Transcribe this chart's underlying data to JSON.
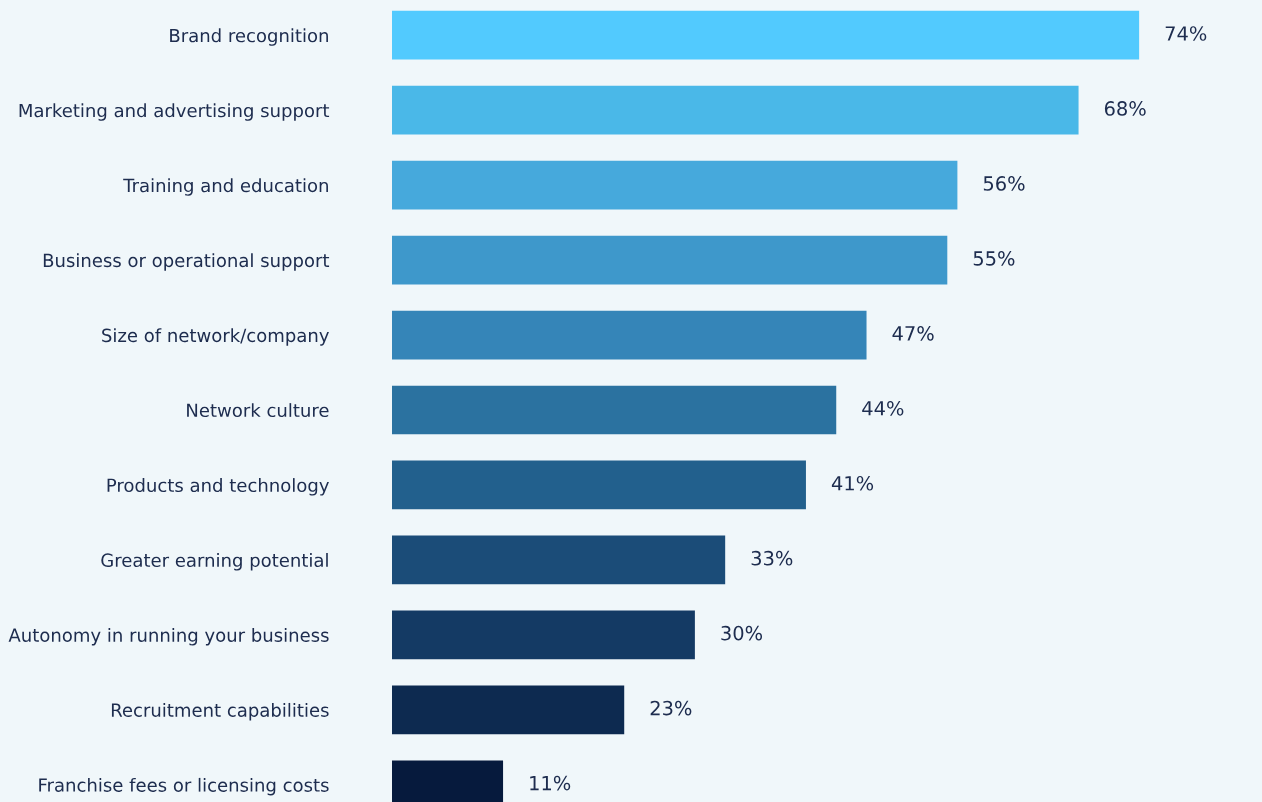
{
  "chart_data": {
    "type": "bar",
    "orientation": "horizontal",
    "data_labels": true,
    "categories": [
      "Brand recognition",
      "Marketing and advertising support",
      "Training and education",
      "Business or operational support",
      "Size of network/company",
      "Network culture",
      "Products and technology",
      "Greater earning potential",
      "Autonomy in running your business",
      "Recruitment capabilities",
      "Franchise fees or licensing costs"
    ],
    "values": [
      74,
      68,
      56,
      55,
      47,
      44,
      41,
      33,
      30,
      23,
      11
    ],
    "value_labels": [
      "74%",
      "68%",
      "56%",
      "55%",
      "47%",
      "44%",
      "41%",
      "33%",
      "30%",
      "23%",
      "11%"
    ],
    "colors": [
      "#52cafe",
      "#4ab8e8",
      "#46a9dc",
      "#3e98cb",
      "#3585b8",
      "#2b72a0",
      "#22608d",
      "#1b4c78",
      "#143a64",
      "#0d2a50",
      "#061a3d"
    ]
  }
}
